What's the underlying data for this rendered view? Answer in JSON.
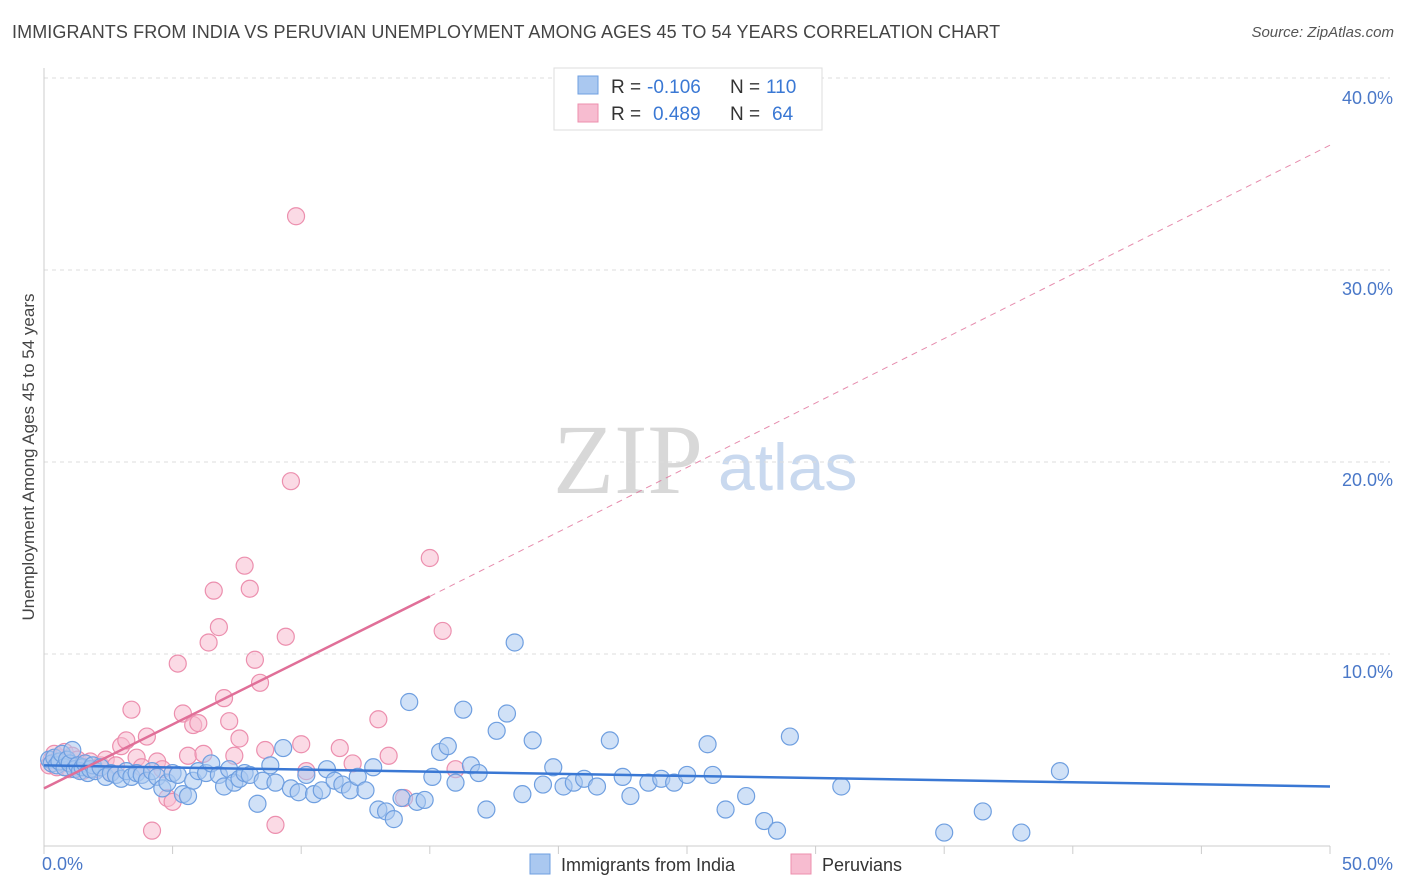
{
  "title": "IMMIGRANTS FROM INDIA VS PERUVIAN UNEMPLOYMENT AMONG AGES 45 TO 54 YEARS CORRELATION CHART",
  "source": "Source: ZipAtlas.com",
  "watermark": {
    "zip": "ZIP",
    "atlas": "atlas"
  },
  "colors": {
    "blue_fill": "#aac8f0",
    "blue_stroke": "#6f9fe0",
    "blue_line": "#3a78d4",
    "pink_fill": "#f7bcd0",
    "pink_stroke": "#ec8fae",
    "pink_line": "#e06f98",
    "grid": "#dddddd",
    "tick_text": "#4a78c8"
  },
  "legend": {
    "row1": {
      "r_label": "R =",
      "r_value": "-0.106",
      "n_label": "N =",
      "n_value": "110"
    },
    "row2": {
      "r_label": "R =",
      "r_value": "0.489",
      "n_label": "N =",
      "n_value": "64"
    }
  },
  "chart_data": {
    "type": "scatter",
    "title": "IMMIGRANTS FROM INDIA VS PERUVIAN UNEMPLOYMENT AMONG AGES 45 TO 54 YEARS CORRELATION CHART",
    "xlabel": "",
    "ylabel": "Unemployment Among Ages 45 to 54 years",
    "xlim": [
      0,
      50
    ],
    "ylim": [
      0,
      40
    ],
    "x_tick_labels": [
      "0.0%",
      "50.0%"
    ],
    "y_ticks": [
      10,
      20,
      30,
      40
    ],
    "y_tick_labels": [
      "10.0%",
      "20.0%",
      "30.0%",
      "40.0%"
    ],
    "grid": true,
    "series": [
      {
        "name": "Immigrants from India",
        "color": "#6f9fe0",
        "R": -0.106,
        "N": 110,
        "trend": {
          "x": [
            0,
            50
          ],
          "y": [
            4.2,
            3.1
          ],
          "style": "solid"
        },
        "points": [
          [
            0.2,
            4.5
          ],
          [
            0.3,
            4.3
          ],
          [
            0.4,
            4.6
          ],
          [
            0.5,
            4.2
          ],
          [
            0.6,
            4.4
          ],
          [
            0.7,
            4.8
          ],
          [
            0.8,
            4.1
          ],
          [
            0.9,
            4.5
          ],
          [
            1.0,
            4.3
          ],
          [
            1.1,
            5.0
          ],
          [
            1.2,
            4.0
          ],
          [
            1.3,
            4.2
          ],
          [
            1.4,
            3.9
          ],
          [
            1.5,
            4.1
          ],
          [
            1.6,
            4.3
          ],
          [
            1.7,
            3.8
          ],
          [
            1.8,
            4.0
          ],
          [
            1.9,
            4.2
          ],
          [
            2.0,
            3.9
          ],
          [
            2.2,
            4.1
          ],
          [
            2.4,
            3.6
          ],
          [
            2.6,
            3.8
          ],
          [
            2.8,
            3.7
          ],
          [
            3.0,
            3.5
          ],
          [
            3.2,
            3.9
          ],
          [
            3.4,
            3.6
          ],
          [
            3.6,
            3.8
          ],
          [
            3.8,
            3.7
          ],
          [
            4.0,
            3.4
          ],
          [
            4.2,
            3.9
          ],
          [
            4.4,
            3.6
          ],
          [
            4.6,
            3.0
          ],
          [
            4.8,
            3.3
          ],
          [
            5.0,
            3.8
          ],
          [
            5.2,
            3.7
          ],
          [
            5.4,
            2.7
          ],
          [
            5.6,
            2.6
          ],
          [
            5.8,
            3.4
          ],
          [
            6.0,
            3.9
          ],
          [
            6.3,
            3.8
          ],
          [
            6.5,
            4.3
          ],
          [
            6.8,
            3.7
          ],
          [
            7.0,
            3.1
          ],
          [
            7.2,
            4.0
          ],
          [
            7.4,
            3.3
          ],
          [
            7.6,
            3.5
          ],
          [
            7.8,
            3.8
          ],
          [
            8.0,
            3.7
          ],
          [
            8.3,
            2.2
          ],
          [
            8.5,
            3.4
          ],
          [
            8.8,
            4.2
          ],
          [
            9.0,
            3.3
          ],
          [
            9.3,
            5.1
          ],
          [
            9.6,
            3.0
          ],
          [
            9.9,
            2.8
          ],
          [
            10.2,
            3.7
          ],
          [
            10.5,
            2.7
          ],
          [
            10.8,
            2.9
          ],
          [
            11.0,
            4.0
          ],
          [
            11.3,
            3.4
          ],
          [
            11.6,
            3.2
          ],
          [
            11.9,
            2.9
          ],
          [
            12.2,
            3.6
          ],
          [
            12.5,
            2.9
          ],
          [
            12.8,
            4.1
          ],
          [
            13.0,
            1.9
          ],
          [
            13.3,
            1.8
          ],
          [
            13.6,
            1.4
          ],
          [
            13.9,
            2.5
          ],
          [
            14.2,
            7.5
          ],
          [
            14.5,
            2.3
          ],
          [
            14.8,
            2.4
          ],
          [
            15.1,
            3.6
          ],
          [
            15.4,
            4.9
          ],
          [
            15.7,
            5.2
          ],
          [
            16.0,
            3.3
          ],
          [
            16.3,
            7.1
          ],
          [
            16.6,
            4.2
          ],
          [
            16.9,
            3.8
          ],
          [
            17.2,
            1.9
          ],
          [
            17.6,
            6.0
          ],
          [
            18.0,
            6.9
          ],
          [
            18.3,
            10.6
          ],
          [
            18.6,
            2.7
          ],
          [
            19.0,
            5.5
          ],
          [
            19.4,
            3.2
          ],
          [
            19.8,
            4.1
          ],
          [
            20.2,
            3.1
          ],
          [
            20.6,
            3.3
          ],
          [
            21.0,
            3.5
          ],
          [
            21.5,
            3.1
          ],
          [
            22.0,
            5.5
          ],
          [
            22.5,
            3.6
          ],
          [
            22.8,
            2.6
          ],
          [
            23.5,
            3.3
          ],
          [
            24.0,
            3.5
          ],
          [
            24.5,
            3.3
          ],
          [
            25.0,
            3.7
          ],
          [
            25.8,
            5.3
          ],
          [
            26.0,
            3.7
          ],
          [
            26.5,
            1.9
          ],
          [
            27.3,
            2.6
          ],
          [
            28.0,
            1.3
          ],
          [
            28.5,
            0.8
          ],
          [
            29.0,
            5.7
          ],
          [
            31.0,
            3.1
          ],
          [
            35.0,
            0.7
          ],
          [
            36.5,
            1.8
          ],
          [
            38.0,
            0.7
          ],
          [
            39.5,
            3.9
          ]
        ]
      },
      {
        "name": "Peruvians",
        "color": "#ec8fae",
        "R": 0.489,
        "N": 64,
        "trend": {
          "x": [
            0,
            15
          ],
          "y": [
            3.0,
            13.0
          ],
          "style": "solid",
          "extended": {
            "x": [
              15,
              50
            ],
            "y": [
              13.0,
              36.5
            ],
            "style": "dashed"
          }
        },
        "points": [
          [
            0.2,
            4.2
          ],
          [
            0.3,
            4.5
          ],
          [
            0.4,
            4.8
          ],
          [
            0.5,
            4.1
          ],
          [
            0.6,
            4.6
          ],
          [
            0.7,
            4.3
          ],
          [
            0.8,
            4.9
          ],
          [
            0.9,
            4.4
          ],
          [
            1.0,
            4.0
          ],
          [
            1.1,
            4.7
          ],
          [
            1.2,
            4.2
          ],
          [
            1.3,
            4.5
          ],
          [
            1.4,
            4.1
          ],
          [
            1.5,
            3.9
          ],
          [
            1.6,
            4.3
          ],
          [
            1.8,
            4.4
          ],
          [
            2.0,
            4.0
          ],
          [
            2.2,
            4.2
          ],
          [
            2.4,
            4.5
          ],
          [
            2.6,
            3.8
          ],
          [
            2.8,
            4.2
          ],
          [
            3.0,
            5.2
          ],
          [
            3.2,
            5.5
          ],
          [
            3.4,
            7.1
          ],
          [
            3.6,
            4.6
          ],
          [
            3.8,
            4.1
          ],
          [
            4.0,
            5.7
          ],
          [
            4.2,
            0.8
          ],
          [
            4.4,
            4.4
          ],
          [
            4.6,
            4.0
          ],
          [
            4.8,
            2.5
          ],
          [
            5.0,
            2.3
          ],
          [
            5.2,
            9.5
          ],
          [
            5.4,
            6.9
          ],
          [
            5.6,
            4.7
          ],
          [
            5.8,
            6.3
          ],
          [
            6.0,
            6.4
          ],
          [
            6.2,
            4.8
          ],
          [
            6.4,
            10.6
          ],
          [
            6.6,
            13.3
          ],
          [
            6.8,
            11.4
          ],
          [
            7.0,
            7.7
          ],
          [
            7.2,
            6.5
          ],
          [
            7.4,
            4.7
          ],
          [
            7.6,
            5.6
          ],
          [
            7.8,
            14.6
          ],
          [
            8.0,
            13.4
          ],
          [
            8.2,
            9.7
          ],
          [
            8.4,
            8.5
          ],
          [
            8.6,
            5.0
          ],
          [
            9.0,
            1.1
          ],
          [
            9.4,
            10.9
          ],
          [
            9.6,
            19.0
          ],
          [
            9.8,
            32.8
          ],
          [
            10.0,
            5.3
          ],
          [
            10.2,
            3.9
          ],
          [
            11.5,
            5.1
          ],
          [
            12.0,
            4.3
          ],
          [
            13.0,
            6.6
          ],
          [
            13.4,
            4.7
          ],
          [
            14.0,
            2.5
          ],
          [
            15.0,
            15.0
          ],
          [
            15.5,
            11.2
          ],
          [
            16.0,
            4.0
          ]
        ]
      }
    ]
  },
  "bottom_legend": {
    "india_label": "Immigrants from India",
    "peru_label": "Peruvians"
  }
}
